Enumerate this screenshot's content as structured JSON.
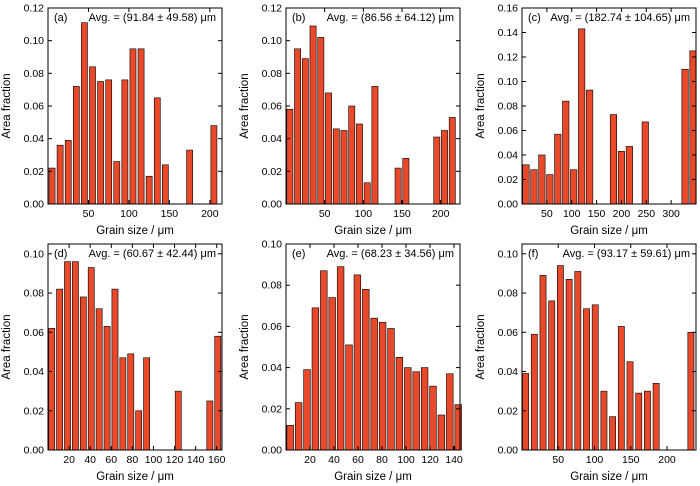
{
  "figure": {
    "bar_color": "#e8492b",
    "bar_edge": "#000000"
  },
  "chart_data": [
    {
      "type": "bar",
      "panel_label": "(a)",
      "annotation": "Avg. = (91.84 ± 49.58) μm",
      "xlabel": "Grain size / μm",
      "ylabel": "Area fraction",
      "xlim": [
        0,
        215
      ],
      "ylim": [
        0,
        0.12
      ],
      "xticks": [
        50,
        100,
        150,
        200
      ],
      "yticks": [
        0.0,
        0.02,
        0.04,
        0.06,
        0.08,
        0.1,
        0.12
      ],
      "bar_width": 7.5,
      "x": [
        5,
        15,
        25,
        35,
        45,
        55,
        65,
        75,
        85,
        95,
        105,
        115,
        125,
        135,
        145,
        155,
        175,
        205
      ],
      "values": [
        0.022,
        0.036,
        0.039,
        0.072,
        0.111,
        0.084,
        0.075,
        0.076,
        0.026,
        0.076,
        0.095,
        0.095,
        0.017,
        0.065,
        0.024,
        0.0,
        0.033,
        0.048
      ]
    },
    {
      "type": "bar",
      "panel_label": "(b)",
      "annotation": "Avg. = (86.56 ± 64.12) μm",
      "xlabel": "Grain size / μm",
      "ylabel": "Area fraction",
      "xlim": [
        0,
        225
      ],
      "ylim": [
        0,
        0.12
      ],
      "xticks": [
        50,
        100,
        150,
        200
      ],
      "yticks": [
        0.0,
        0.02,
        0.04,
        0.06,
        0.08,
        0.1,
        0.12
      ],
      "bar_width": 8,
      "x": [
        5,
        15,
        25,
        35,
        45,
        55,
        65,
        75,
        85,
        95,
        105,
        115,
        125,
        145,
        155,
        195,
        205,
        215
      ],
      "values": [
        0.058,
        0.095,
        0.089,
        0.109,
        0.102,
        0.068,
        0.046,
        0.045,
        0.06,
        0.049,
        0.013,
        0.072,
        0.0,
        0.022,
        0.028,
        0.041,
        0.045,
        0.053
      ]
    },
    {
      "type": "bar",
      "panel_label": "(c)",
      "annotation": "Avg. = (182.74 ± 104.65) μm",
      "xlabel": "Grain size / μm",
      "ylabel": "Area fraction",
      "xlim": [
        0,
        350
      ],
      "ylim": [
        0,
        0.16
      ],
      "xticks": [
        50,
        100,
        150,
        200,
        250,
        300
      ],
      "yticks": [
        0.0,
        0.02,
        0.04,
        0.06,
        0.08,
        0.1,
        0.12,
        0.14,
        0.16
      ],
      "bar_width": 13,
      "x": [
        8,
        24,
        40,
        56,
        72,
        88,
        104,
        120,
        136,
        152,
        184,
        200,
        216,
        248,
        328,
        344
      ],
      "values": [
        0.032,
        0.028,
        0.04,
        0.024,
        0.057,
        0.084,
        0.028,
        0.143,
        0.093,
        0.0,
        0.073,
        0.043,
        0.047,
        0.067,
        0.11,
        0.125
      ]
    },
    {
      "type": "bar",
      "panel_label": "(d)",
      "annotation": "Avg. = (60.67 ± 42.44) μm",
      "xlabel": "Grain size / μm",
      "ylabel": "Area fraction",
      "xlim": [
        0,
        165
      ],
      "ylim": [
        0,
        0.105
      ],
      "xticks": [
        20,
        40,
        60,
        80,
        100,
        120,
        140,
        160
      ],
      "yticks": [
        0.0,
        0.02,
        0.04,
        0.06,
        0.08,
        0.1
      ],
      "bar_width": 5.8,
      "x": [
        3.5,
        11,
        18.5,
        26,
        33.5,
        41,
        48.5,
        56,
        63.5,
        71,
        78.5,
        86,
        93.5,
        101,
        108.5,
        123.5,
        153.5,
        161
      ],
      "values": [
        0.062,
        0.082,
        0.096,
        0.096,
        0.078,
        0.093,
        0.072,
        0.063,
        0.082,
        0.047,
        0.049,
        0.02,
        0.047,
        0.0,
        0.0,
        0.03,
        0.025,
        0.058
      ]
    },
    {
      "type": "bar",
      "panel_label": "(e)",
      "annotation": "Avg. = (68.23 ± 34.56) μm",
      "xlabel": "Grain size / μm",
      "ylabel": "Area fraction",
      "xlim": [
        0,
        145
      ],
      "ylim": [
        0,
        0.1
      ],
      "xticks": [
        20,
        40,
        60,
        80,
        100,
        120,
        140
      ],
      "yticks": [
        0.0,
        0.02,
        0.04,
        0.06,
        0.08,
        0.1
      ],
      "bar_width": 5.6,
      "x": [
        3.5,
        10.5,
        17.5,
        24.5,
        31.5,
        38.5,
        45.5,
        52.5,
        59.5,
        66.5,
        73.5,
        80.5,
        87.5,
        94.5,
        101.5,
        108.5,
        115.5,
        122.5,
        129.5,
        136.5,
        143.5
      ],
      "values": [
        0.012,
        0.023,
        0.039,
        0.069,
        0.087,
        0.074,
        0.089,
        0.051,
        0.085,
        0.078,
        0.064,
        0.062,
        0.059,
        0.045,
        0.04,
        0.038,
        0.04,
        0.031,
        0.017,
        0.037,
        0.022
      ]
    },
    {
      "type": "bar",
      "panel_label": "(f)",
      "annotation": "Avg. = (93.17 ± 59.61) μm",
      "xlabel": "Grain size / μm",
      "ylabel": "Area fraction",
      "xlim": [
        0,
        240
      ],
      "ylim": [
        0,
        0.105
      ],
      "xticks": [
        50,
        100,
        150,
        200
      ],
      "yticks": [
        0.0,
        0.02,
        0.04,
        0.06,
        0.08,
        0.1
      ],
      "bar_width": 8.5,
      "x": [
        5,
        17,
        29,
        41,
        53,
        65,
        77,
        89,
        101,
        113,
        125,
        137,
        149,
        161,
        173,
        185,
        233
      ],
      "values": [
        0.039,
        0.059,
        0.089,
        0.076,
        0.094,
        0.087,
        0.091,
        0.072,
        0.074,
        0.03,
        0.017,
        0.063,
        0.045,
        0.029,
        0.03,
        0.034,
        0.06
      ]
    }
  ]
}
